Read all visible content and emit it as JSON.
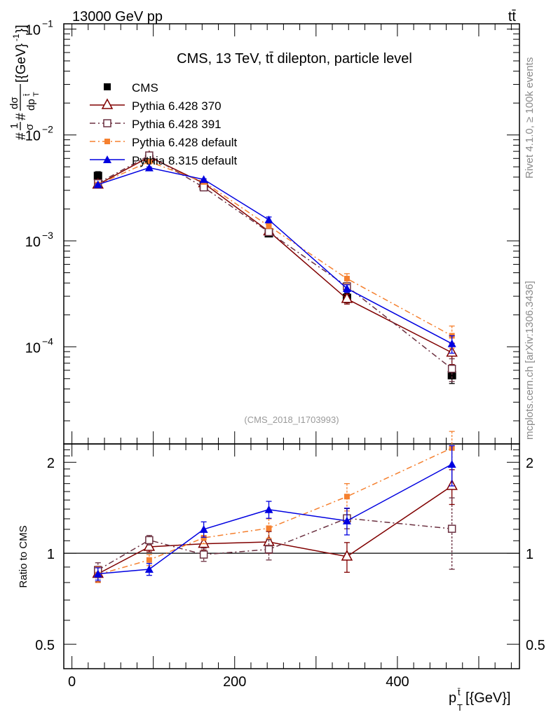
{
  "header": {
    "left": "13000 GeV pp",
    "right": "tt̄"
  },
  "side_labels": {
    "top": "Rivet 4.1.0, ≥ 100k events",
    "bottom": "mcplots.cern.ch [arXiv:1306.3436]"
  },
  "colors": {
    "data": "#000000",
    "p370": "#800000",
    "p391": "#6b3040",
    "p6def": "#f5802f",
    "p8def": "#0000e0"
  },
  "chart_data": [
    {
      "type": "line",
      "title": "CMS, 13 TeV, tt̄ dilepton, particle level",
      "watermark": "(CMS_2018_I1703993)",
      "xlabel": "p_T^{t̄}[{GeV}]",
      "ylabel": "#frac{1}{σ}#frac{dσ}{dp_T^{t̄}}[{GeV}^{-1}]",
      "yscale": "log",
      "xlim": [
        -10,
        550
      ],
      "ylim": [
        1.21e-05,
        0.112
      ],
      "yticks": [
        {
          "value": 0.1,
          "base": "10",
          "exp": "−1"
        },
        {
          "value": 0.01,
          "base": "10",
          "exp": "−2"
        },
        {
          "value": 0.001,
          "base": "10",
          "exp": "−3"
        },
        {
          "value": 0.0001,
          "base": "10",
          "exp": "−4"
        }
      ],
      "x": [
        32,
        95,
        162,
        242,
        338,
        467
      ],
      "series": [
        {
          "name": "CMS",
          "key": "data",
          "values": [
            0.0041,
            0.0059,
            0.0033,
            0.00118,
            0.00029,
            5.4e-05
          ],
          "errors": [
            0.0004,
            0.0004,
            0.0002,
            8e-05,
            3e-05,
            9e-06
          ]
        },
        {
          "name": "Pythia 6.428 370",
          "key": "p370",
          "values": [
            0.0034,
            0.0062,
            0.0035,
            0.00123,
            0.000283,
            8.8e-05
          ],
          "errors": [
            5e-05,
            8e-05,
            6e-05,
            3e-05,
            3e-05,
            2e-05
          ]
        },
        {
          "name": "Pythia 6.428 391",
          "key": "p391",
          "values": [
            0.0035,
            0.0064,
            0.0032,
            0.00121,
            0.000372,
            6.2e-05
          ],
          "errors": [
            5e-05,
            8e-05,
            6e-05,
            3e-05,
            3e-05,
            1.5e-05
          ]
        },
        {
          "name": "Pythia 6.428 default",
          "key": "p6def",
          "values": [
            0.0034,
            0.0056,
            0.0036,
            0.00138,
            0.00044,
            0.000127
          ],
          "errors": [
            5e-05,
            8e-05,
            6e-05,
            4e-05,
            5e-05,
            3e-05
          ]
        },
        {
          "name": "Pythia 8.315 default",
          "key": "p8def",
          "values": [
            0.0034,
            0.0049,
            0.0038,
            0.00158,
            0.000355,
            0.000107
          ],
          "errors": [
            5e-05,
            8e-05,
            6e-05,
            0.0001,
            3e-05,
            2e-05
          ]
        }
      ]
    },
    {
      "type": "line",
      "title": "",
      "ylabel": "Ratio to CMS",
      "xlabel": "p_T^{t̄}[{GeV}]",
      "yscale": "log",
      "xlim": [
        -10,
        550
      ],
      "ylim": [
        0.415,
        2.3
      ],
      "yticks": [
        {
          "value": 2,
          "label": "2"
        },
        {
          "value": 1,
          "label": "1"
        },
        {
          "value": 0.5,
          "label": "0.5"
        }
      ],
      "xticks": [
        {
          "value": 0,
          "label": "0"
        },
        {
          "value": 200,
          "label": "200"
        },
        {
          "value": 400,
          "label": "400"
        }
      ],
      "reference_line": 1,
      "x": [
        32,
        95,
        162,
        242,
        338,
        467
      ],
      "series": [
        {
          "name": "Pythia 6.428 370",
          "key": "p370",
          "values": [
            0.855,
            1.05,
            1.075,
            1.09,
            0.975,
            1.67
          ],
          "errors": [
            0.05,
            0.04,
            0.05,
            0.09,
            0.11,
            0.22
          ]
        },
        {
          "name": "Pythia 6.428 391",
          "key": "p391",
          "values": [
            0.88,
            1.105,
            0.99,
            1.03,
            1.305,
            1.205
          ],
          "errors": [
            0.05,
            0.04,
            0.05,
            0.08,
            0.1,
            0.32
          ]
        },
        {
          "name": "Pythia 6.428 default",
          "key": "p6def",
          "values": [
            0.85,
            0.95,
            1.125,
            1.21,
            1.54,
            2.23
          ],
          "errors": [
            0.05,
            0.04,
            0.05,
            0.09,
            0.16,
            0.3
          ]
        },
        {
          "name": "Pythia 8.315 default",
          "key": "p8def",
          "values": [
            0.855,
            0.885,
            1.2,
            1.395,
            1.28,
            1.97
          ],
          "errors": [
            0.04,
            0.04,
            0.07,
            0.09,
            0.13,
            0.3
          ]
        }
      ]
    }
  ]
}
